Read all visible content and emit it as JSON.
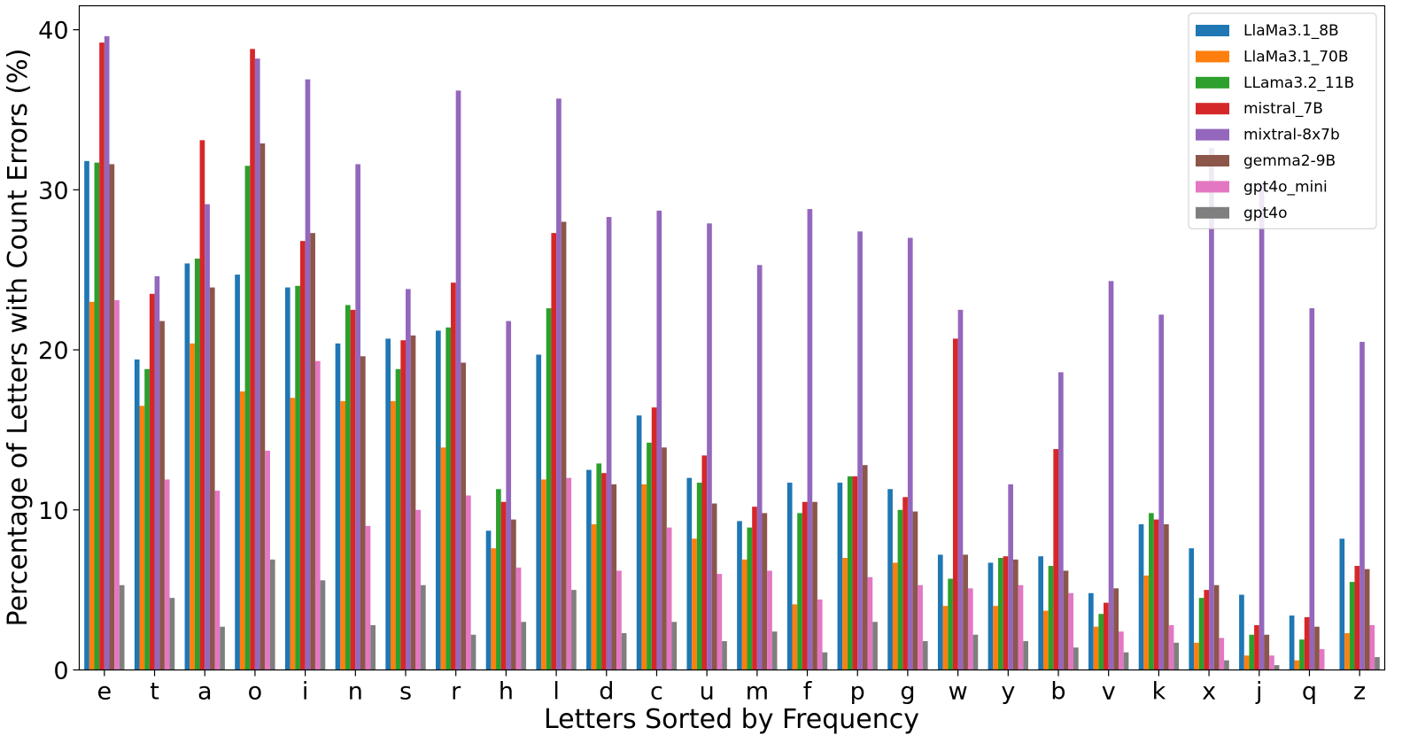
{
  "chart_data": {
    "type": "bar",
    "title": "",
    "xlabel": "Letters Sorted by Frequency",
    "ylabel": "Percentage of Letters with Count Errors (%)",
    "ylim": [
      0,
      41.5
    ],
    "yticks": [
      0,
      10,
      20,
      30,
      40
    ],
    "ytick_labels": [
      "0",
      "10",
      "20",
      "30",
      "40"
    ],
    "grid": false,
    "legend_position": "top-right",
    "categories": [
      "e",
      "t",
      "a",
      "o",
      "i",
      "n",
      "s",
      "r",
      "h",
      "l",
      "d",
      "c",
      "u",
      "m",
      "f",
      "p",
      "g",
      "w",
      "y",
      "b",
      "v",
      "k",
      "x",
      "j",
      "q",
      "z"
    ],
    "series": [
      {
        "name": "LlaMa3.1_8B",
        "color": "#1f77b4",
        "values": [
          31.8,
          19.4,
          25.4,
          24.7,
          23.9,
          20.4,
          20.7,
          21.2,
          8.7,
          19.7,
          12.5,
          15.9,
          12.0,
          9.3,
          11.7,
          11.7,
          11.3,
          7.2,
          6.7,
          7.1,
          4.8,
          9.1,
          7.6,
          4.7,
          3.4,
          8.2
        ]
      },
      {
        "name": "LlaMa3.1_70B",
        "color": "#ff7f0e",
        "values": [
          23.0,
          16.5,
          20.4,
          17.4,
          17.0,
          16.8,
          16.8,
          13.9,
          7.6,
          11.9,
          9.1,
          11.6,
          8.2,
          6.9,
          4.1,
          7.0,
          6.7,
          4.0,
          4.0,
          3.7,
          2.7,
          5.9,
          1.7,
          0.9,
          0.6,
          2.3
        ]
      },
      {
        "name": "LLama3.2_11B",
        "color": "#2ca02c",
        "values": [
          31.7,
          18.8,
          25.7,
          31.5,
          24.0,
          22.8,
          18.8,
          21.4,
          11.3,
          22.6,
          12.9,
          14.2,
          11.7,
          8.9,
          9.8,
          12.1,
          10.0,
          5.7,
          7.0,
          6.5,
          3.5,
          9.8,
          4.5,
          2.2,
          1.9,
          5.5
        ]
      },
      {
        "name": "mistral_7B",
        "color": "#d62728",
        "values": [
          39.2,
          23.5,
          33.1,
          38.8,
          26.8,
          22.5,
          20.6,
          24.2,
          10.5,
          27.3,
          12.3,
          16.4,
          13.4,
          10.2,
          10.5,
          12.1,
          10.8,
          20.7,
          7.1,
          13.8,
          4.2,
          9.4,
          5.0,
          2.8,
          3.3,
          6.5
        ]
      },
      {
        "name": "mixtral-8x7b",
        "color": "#9467bd",
        "values": [
          39.6,
          24.6,
          29.1,
          38.2,
          36.9,
          31.6,
          23.8,
          36.2,
          21.8,
          35.7,
          28.3,
          28.7,
          27.9,
          25.3,
          28.8,
          27.4,
          27.0,
          22.5,
          11.6,
          18.6,
          24.3,
          22.2,
          32.6,
          30.4,
          22.6,
          20.5
        ]
      },
      {
        "name": "gemma2-9B",
        "color": "#8c564b",
        "values": [
          31.6,
          21.8,
          23.9,
          32.9,
          27.3,
          19.6,
          20.9,
          19.2,
          9.4,
          28.0,
          11.6,
          13.9,
          10.4,
          9.8,
          10.5,
          12.8,
          9.9,
          7.2,
          6.9,
          6.2,
          5.1,
          9.1,
          5.3,
          2.2,
          2.7,
          6.3
        ]
      },
      {
        "name": "gpt4o_mini",
        "color": "#e377c2",
        "values": [
          23.1,
          11.9,
          11.2,
          13.7,
          19.3,
          9.0,
          10.0,
          10.9,
          6.4,
          12.0,
          6.2,
          8.9,
          6.0,
          6.2,
          4.4,
          5.8,
          5.3,
          5.1,
          5.3,
          4.8,
          2.4,
          2.8,
          2.0,
          0.9,
          1.3,
          2.8
        ]
      },
      {
        "name": "gpt4o",
        "color": "#7f7f7f",
        "values": [
          5.3,
          4.5,
          2.7,
          6.9,
          5.6,
          2.8,
          5.3,
          2.2,
          3.0,
          5.0,
          2.3,
          3.0,
          1.8,
          2.4,
          1.1,
          3.0,
          1.8,
          2.2,
          1.8,
          1.4,
          1.1,
          1.7,
          0.6,
          0.3,
          0.0,
          0.8
        ]
      }
    ]
  }
}
